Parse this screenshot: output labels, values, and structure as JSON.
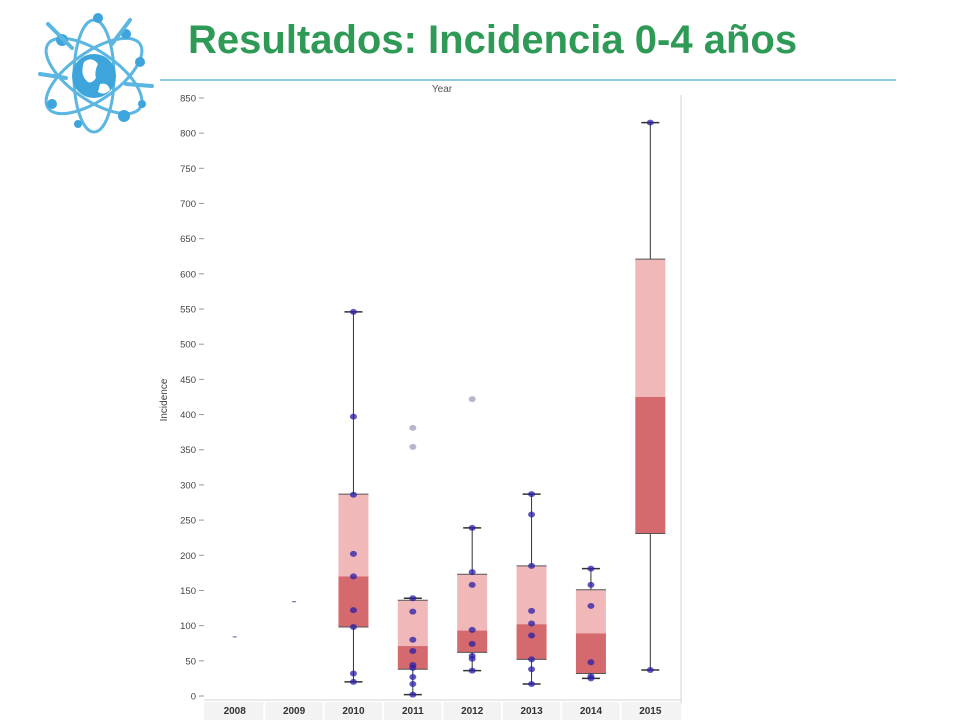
{
  "header": {
    "title": "Resultados: Incidencia 0-4 años",
    "logo": "atom-globe-logo",
    "accent_color": "#2e9a56",
    "rule_color": "#8ec9d8"
  },
  "chart_data": {
    "type": "box",
    "title": "",
    "top_label": "Year",
    "ylabel": "Incidence",
    "xlabel": "",
    "ylim": [
      0,
      860
    ],
    "yticks": [
      "0",
      "50",
      "100",
      "150",
      "200",
      "250",
      "300",
      "350",
      "400",
      "450",
      "500",
      "550",
      "600",
      "650",
      "700",
      "750",
      "800",
      "850"
    ],
    "categories": [
      "2008",
      "2009",
      "2010",
      "2011",
      "2012",
      "2013",
      "2014",
      "2015"
    ],
    "colors": {
      "upper_box": "#f0b8b9",
      "lower_box": "#d46a6d",
      "point": "#2a1fa8",
      "outlier": "#b8b6cc",
      "whisker": "#333333"
    },
    "boxes": [
      {
        "year": "2008",
        "single": 84
      },
      {
        "year": "2009",
        "single": 134
      },
      {
        "year": "2010",
        "min": 20,
        "q1": 98,
        "median": 170,
        "q3": 287,
        "max": 546,
        "points": [
          20,
          32,
          98,
          122,
          170,
          202,
          286,
          397,
          546
        ],
        "outliers": []
      },
      {
        "year": "2011",
        "min": 2,
        "q1": 38,
        "median": 71,
        "q3": 136,
        "max": 139,
        "points": [
          2,
          17,
          27,
          40,
          44,
          64,
          80,
          120,
          139
        ],
        "outliers": [
          354,
          381
        ]
      },
      {
        "year": "2012",
        "min": 36,
        "q1": 62,
        "median": 93,
        "q3": 173,
        "max": 239,
        "points": [
          36,
          53,
          57,
          74,
          94,
          158,
          176,
          239
        ],
        "outliers": [
          422
        ]
      },
      {
        "year": "2013",
        "min": 17,
        "q1": 52,
        "median": 102,
        "q3": 185,
        "max": 287,
        "points": [
          17,
          38,
          52,
          86,
          103,
          121,
          185,
          258,
          287
        ],
        "outliers": []
      },
      {
        "year": "2014",
        "min": 25,
        "q1": 32,
        "median": 89,
        "q3": 151,
        "max": 181,
        "points": [
          25,
          28,
          48,
          128,
          158,
          181
        ],
        "outliers": []
      },
      {
        "year": "2015",
        "min": 37,
        "q1": 231,
        "median": 425,
        "q3": 621,
        "max": 815,
        "points": [
          37,
          815
        ],
        "outliers": []
      }
    ],
    "grid": false,
    "legend": "none"
  }
}
